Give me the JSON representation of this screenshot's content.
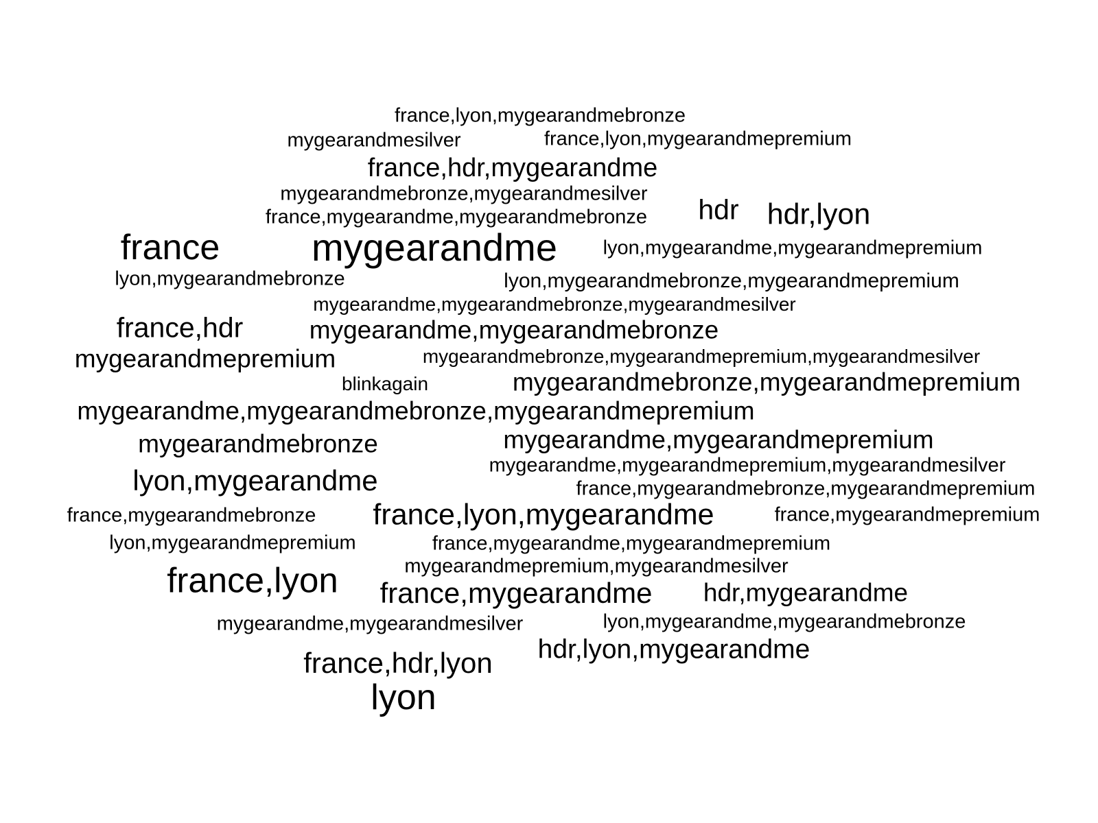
{
  "word_cloud": {
    "words": [
      {
        "text": "france,lyon,mygearandmebronze"
      },
      {
        "text": "mygearandmesilver"
      },
      {
        "text": "france,lyon,mygearandmepremium"
      },
      {
        "text": "france,hdr,mygearandme"
      },
      {
        "text": "mygearandmebronze,mygearandmesilver"
      },
      {
        "text": "france,mygearandme,mygearandmebronze"
      },
      {
        "text": "hdr"
      },
      {
        "text": "hdr,lyon"
      },
      {
        "text": "france"
      },
      {
        "text": "mygearandme"
      },
      {
        "text": "lyon,mygearandme,mygearandmepremium"
      },
      {
        "text": "lyon,mygearandmebronze"
      },
      {
        "text": "lyon,mygearandmebronze,mygearandmepremium"
      },
      {
        "text": "mygearandme,mygearandmebronze,mygearandmesilver"
      },
      {
        "text": "france,hdr"
      },
      {
        "text": "mygearandme,mygearandmebronze"
      },
      {
        "text": "mygearandmepremium"
      },
      {
        "text": "mygearandmebronze,mygearandmepremium,mygearandmesilver"
      },
      {
        "text": "blinkagain"
      },
      {
        "text": "mygearandmebronze,mygearandmepremium"
      },
      {
        "text": "mygearandme,mygearandmebronze,mygearandmepremium"
      },
      {
        "text": "mygearandmebronze"
      },
      {
        "text": "mygearandme,mygearandmepremium"
      },
      {
        "text": "mygearandme,mygearandmepremium,mygearandmesilver"
      },
      {
        "text": "lyon,mygearandme"
      },
      {
        "text": "france,mygearandmebronze,mygearandmepremium"
      },
      {
        "text": "france,mygearandmebronze"
      },
      {
        "text": "france,lyon,mygearandme"
      },
      {
        "text": "france,mygearandmepremium"
      },
      {
        "text": "lyon,mygearandmepremium"
      },
      {
        "text": "france,mygearandme,mygearandmepremium"
      },
      {
        "text": "mygearandmepremium,mygearandmesilver"
      },
      {
        "text": "france,lyon"
      },
      {
        "text": "france,mygearandme"
      },
      {
        "text": "hdr,mygearandme"
      },
      {
        "text": "mygearandme,mygearandmesilver"
      },
      {
        "text": "lyon,mygearandme,mygearandmebronze"
      },
      {
        "text": "hdr,lyon,mygearandme"
      },
      {
        "text": "france,hdr,lyon"
      },
      {
        "text": "lyon"
      }
    ]
  }
}
